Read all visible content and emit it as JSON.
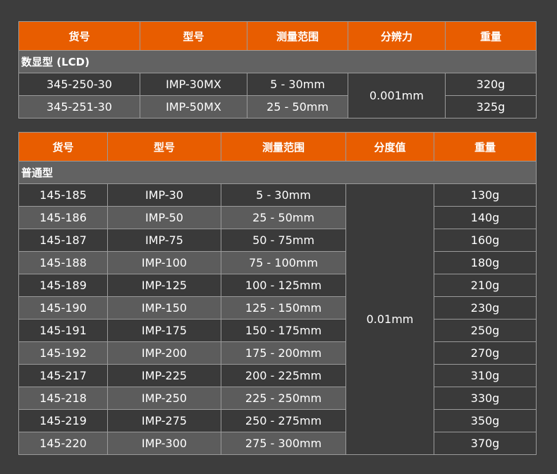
{
  "colors": {
    "header": "#e85d00",
    "group_row": "#626262",
    "row_dark": "#3a3a3a",
    "row_light": "#5c5c5c",
    "background": "#3d3d3d"
  },
  "table1": {
    "headers": [
      "货号",
      "型号",
      "测量范围",
      "分辨力",
      "重量"
    ],
    "group": "数显型 (LCD)",
    "merged": "0.001mm",
    "rows": [
      {
        "code": "345-250-30",
        "model": "IMP-30MX",
        "range": "5 - 30mm",
        "weight": "320g"
      },
      {
        "code": "345-251-30",
        "model": "IMP-50MX",
        "range": "25 - 50mm",
        "weight": "325g"
      }
    ]
  },
  "table2": {
    "headers": [
      "货号",
      "型号",
      "测量范围",
      "分度值",
      "重量"
    ],
    "group": "普通型",
    "merged": "0.01mm",
    "rows": [
      {
        "code": "145-185",
        "model": "IMP-30",
        "range": "5 - 30mm",
        "weight": "130g"
      },
      {
        "code": "145-186",
        "model": "IMP-50",
        "range": "25 - 50mm",
        "weight": "140g"
      },
      {
        "code": "145-187",
        "model": "IMP-75",
        "range": "50 - 75mm",
        "weight": "160g"
      },
      {
        "code": "145-188",
        "model": "IMP-100",
        "range": "75 - 100mm",
        "weight": "180g"
      },
      {
        "code": "145-189",
        "model": "IMP-125",
        "range": "100 - 125mm",
        "weight": "210g"
      },
      {
        "code": "145-190",
        "model": "IMP-150",
        "range": "125 - 150mm",
        "weight": "230g"
      },
      {
        "code": "145-191",
        "model": "IMP-175",
        "range": "150 - 175mm",
        "weight": "250g"
      },
      {
        "code": "145-192",
        "model": "IMP-200",
        "range": "175 - 200mm",
        "weight": "270g"
      },
      {
        "code": "145-217",
        "model": "IMP-225",
        "range": "200 - 225mm",
        "weight": "310g"
      },
      {
        "code": "145-218",
        "model": "IMP-250",
        "range": "225 - 250mm",
        "weight": "330g"
      },
      {
        "code": "145-219",
        "model": "IMP-275",
        "range": "250 - 275mm",
        "weight": "350g"
      },
      {
        "code": "145-220",
        "model": "IMP-300",
        "range": "275 - 300mm",
        "weight": "370g"
      }
    ]
  }
}
